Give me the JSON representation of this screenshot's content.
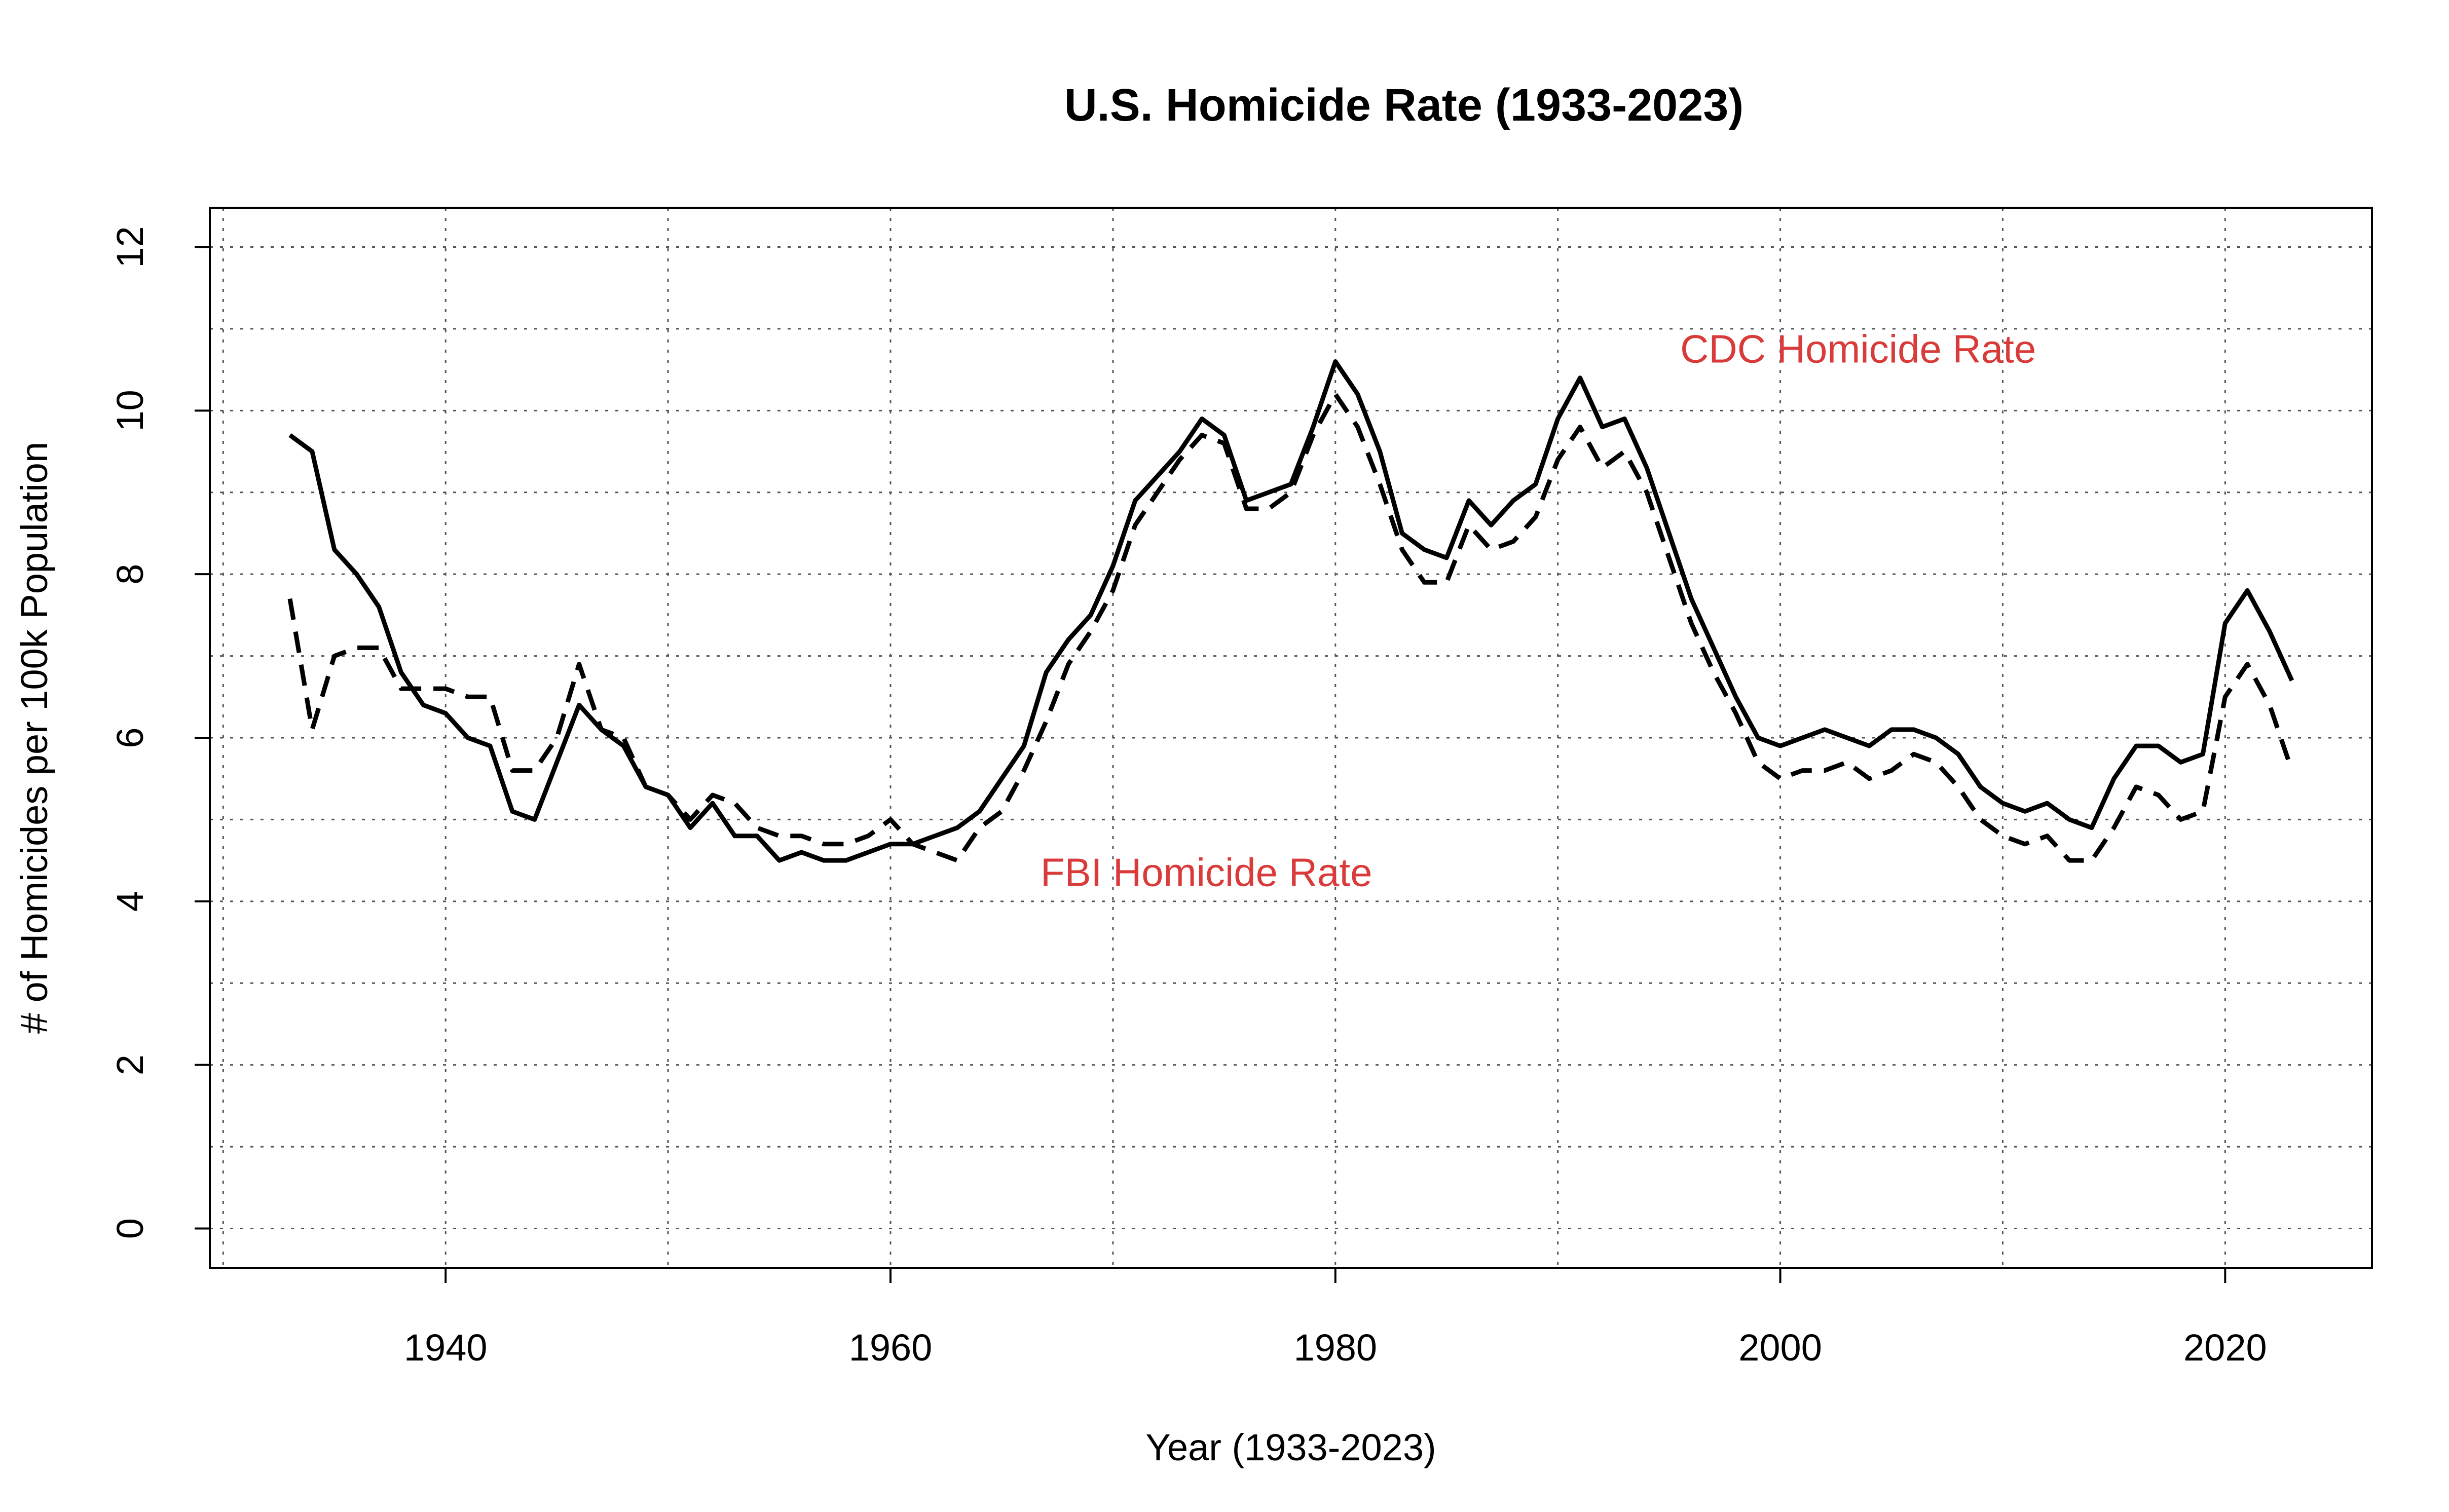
{
  "chart_data": {
    "type": "line",
    "title": "U.S. Homicide Rate (1933-2023)",
    "xlabel": "Year (1933-2023)",
    "ylabel": "# of Homicides per 100k Population",
    "xlim": [
      1929.4,
      1926.6
    ],
    "x_domain": [
      1929.4,
      2026.6
    ],
    "ylim": [
      -0.48,
      12.48
    ],
    "x_ticks": [
      1940,
      1960,
      1980,
      2000,
      2020
    ],
    "x_tick_labels": [
      "1940",
      "1960",
      "1980",
      "2000",
      "2020"
    ],
    "y_ticks": [
      0,
      2,
      4,
      6,
      8,
      10,
      12
    ],
    "y_tick_labels": [
      "0",
      "2",
      "4",
      "6",
      "8",
      "10",
      "12"
    ],
    "x_grid": [
      1930,
      1940,
      1950,
      1960,
      1970,
      1980,
      1990,
      2000,
      2010,
      2020
    ],
    "y_grid": [
      0,
      1,
      2,
      3,
      4,
      5,
      6,
      7,
      8,
      9,
      10,
      11,
      12
    ],
    "grid": true,
    "annotations": [
      {
        "text": "CDC Homicide Rate",
        "x": 2003.5,
        "y": 10.75,
        "color": "#d93a3a"
      },
      {
        "text": "FBI Homicide Rate",
        "x": 1974.2,
        "y": 4.35,
        "color": "#d93a3a"
      }
    ],
    "x": [
      1933,
      1934,
      1935,
      1936,
      1937,
      1938,
      1939,
      1940,
      1941,
      1942,
      1943,
      1944,
      1945,
      1946,
      1947,
      1948,
      1949,
      1950,
      1951,
      1952,
      1953,
      1954,
      1955,
      1956,
      1957,
      1958,
      1959,
      1960,
      1961,
      1962,
      1963,
      1964,
      1965,
      1966,
      1967,
      1968,
      1969,
      1970,
      1971,
      1972,
      1973,
      1974,
      1975,
      1976,
      1977,
      1978,
      1979,
      1980,
      1981,
      1982,
      1983,
      1984,
      1985,
      1986,
      1987,
      1988,
      1989,
      1990,
      1991,
      1992,
      1993,
      1994,
      1995,
      1996,
      1997,
      1998,
      1999,
      2000,
      2001,
      2002,
      2003,
      2004,
      2005,
      2006,
      2007,
      2008,
      2009,
      2010,
      2011,
      2012,
      2013,
      2014,
      2015,
      2016,
      2017,
      2018,
      2019,
      2020,
      2021,
      2022,
      2023
    ],
    "series": [
      {
        "line_style": "solid",
        "values": [
          9.7,
          9.5,
          8.3,
          8.0,
          7.6,
          6.8,
          6.4,
          6.3,
          6.0,
          5.9,
          5.1,
          5.0,
          5.7,
          6.4,
          6.1,
          5.9,
          5.4,
          5.3,
          4.9,
          5.2,
          4.8,
          4.8,
          4.5,
          4.6,
          4.5,
          4.5,
          4.6,
          4.7,
          4.7,
          4.8,
          4.9,
          5.1,
          5.5,
          5.9,
          6.8,
          7.2,
          7.5,
          8.1,
          8.9,
          9.2,
          9.5,
          9.9,
          9.7,
          8.9,
          9.0,
          9.1,
          9.8,
          10.6,
          10.2,
          9.5,
          8.5,
          8.3,
          8.2,
          8.9,
          8.6,
          8.9,
          9.1,
          9.9,
          10.4,
          9.8,
          9.9,
          9.3,
          8.5,
          7.7,
          7.1,
          6.5,
          6.0,
          5.9,
          6.0,
          6.1,
          6.0,
          5.9,
          6.1,
          6.1,
          6.0,
          5.8,
          5.4,
          5.2,
          5.1,
          5.2,
          5.0,
          4.9,
          5.5,
          5.9,
          5.9,
          5.7,
          5.8,
          7.4,
          7.8,
          7.3,
          6.7
        ]
      },
      {
        "line_style": "dashed",
        "values": [
          7.7,
          6.1,
          7.0,
          7.1,
          7.1,
          6.6,
          6.6,
          6.6,
          6.5,
          6.5,
          5.6,
          5.6,
          6.0,
          6.9,
          6.1,
          6.0,
          5.4,
          5.3,
          5.0,
          5.3,
          5.2,
          4.9,
          4.8,
          4.8,
          4.7,
          4.7,
          4.8,
          5.0,
          4.7,
          4.6,
          4.5,
          4.9,
          5.1,
          5.6,
          6.2,
          6.9,
          7.3,
          7.8,
          8.6,
          9.0,
          9.4,
          9.7,
          9.6,
          8.8,
          8.8,
          9.0,
          9.7,
          10.2,
          9.8,
          9.1,
          8.3,
          7.9,
          7.9,
          8.6,
          8.3,
          8.4,
          8.7,
          9.4,
          9.8,
          9.3,
          9.5,
          9.0,
          8.2,
          7.4,
          6.8,
          6.3,
          5.7,
          5.5,
          5.6,
          5.6,
          5.7,
          5.5,
          5.6,
          5.8,
          5.7,
          5.4,
          5.0,
          4.8,
          4.7,
          4.8,
          4.5,
          4.5,
          4.9,
          5.4,
          5.3,
          5.0,
          5.1,
          6.5,
          6.9,
          6.4,
          5.6
        ]
      }
    ]
  }
}
